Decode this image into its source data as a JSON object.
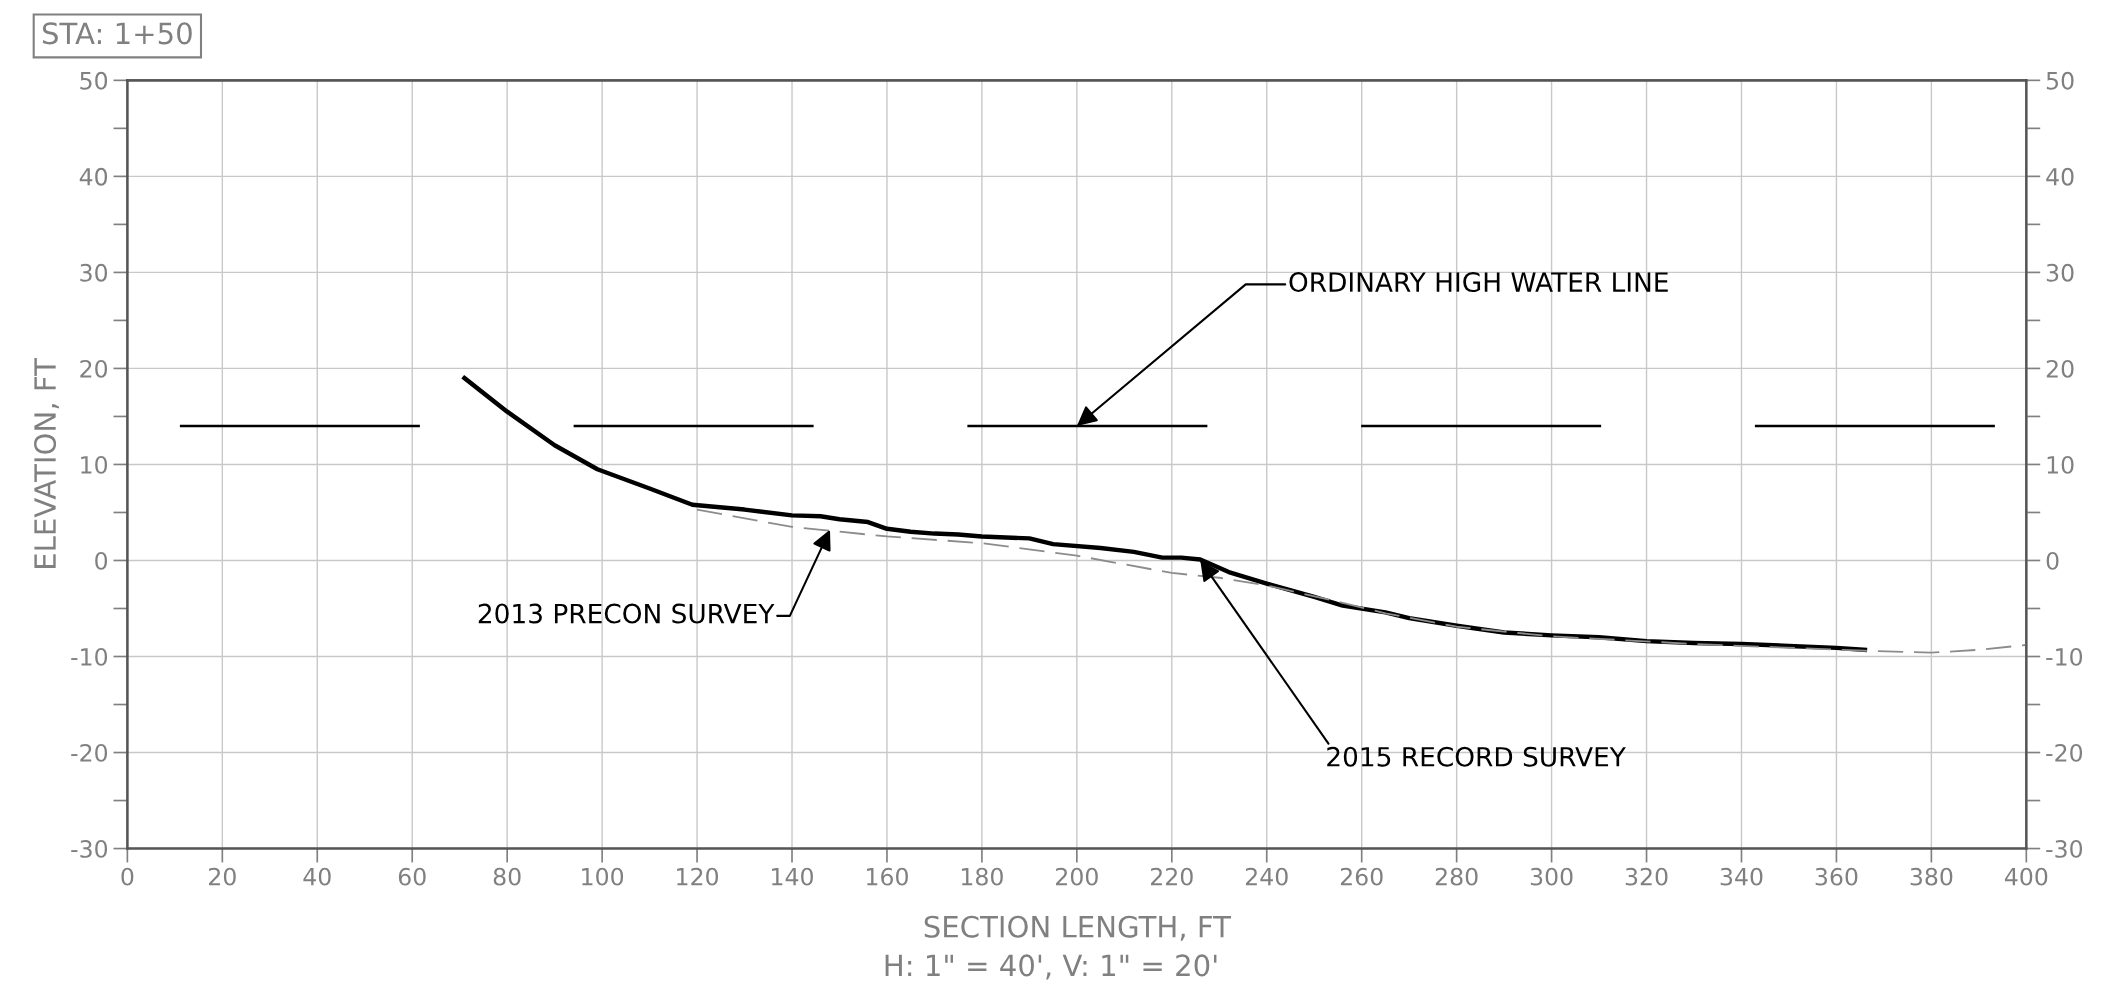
{
  "chart_data": {
    "type": "line",
    "title": "STA: 1+50",
    "xlabel": "SECTION LENGTH, FT",
    "ylabel": "ELEVATION, FT",
    "xlim": [
      0,
      400
    ],
    "xticks": [
      0,
      20,
      40,
      60,
      80,
      100,
      120,
      140,
      160,
      180,
      200,
      220,
      240,
      260,
      280,
      300,
      320,
      340,
      360,
      380,
      400
    ],
    "ylim": [
      -30,
      50
    ],
    "yticks": [
      -30,
      {
        "value": -25,
        "label": null
      },
      -20,
      {
        "value": -15,
        "label": null
      },
      -10,
      {
        "value": -5,
        "label": null
      },
      0,
      {
        "value": 5,
        "label": null
      },
      10,
      {
        "value": 15,
        "label": null
      },
      20,
      {
        "value": 25,
        "label": null
      },
      30,
      {
        "value": 35,
        "label": null
      },
      40,
      {
        "value": 45,
        "label": null
      },
      50
    ],
    "y2lim": [
      -30,
      50
    ],
    "y2ticks": [
      -30,
      {
        "value": -25,
        "label": null
      },
      -20,
      {
        "value": -15,
        "label": null
      },
      -10,
      {
        "value": -5,
        "label": null
      },
      0,
      {
        "value": 5,
        "label": null
      },
      10,
      {
        "value": 15,
        "label": null
      },
      20,
      {
        "value": 25,
        "label": null
      },
      30,
      {
        "value": 35,
        "label": null
      },
      40,
      {
        "value": 45,
        "label": null
      },
      50
    ],
    "grid": true,
    "marker": "none",
    "series": [
      {
        "color": "#000000",
        "line_style": "solid",
        "x": [
          71,
          80,
          90,
          99,
          110,
          119,
          130,
          140,
          146,
          150,
          156,
          160,
          165,
          170,
          175,
          180,
          190,
          195,
          205,
          212,
          218,
          222,
          226,
          232,
          240,
          250,
          256,
          265,
          270,
          280,
          290,
          300,
          310,
          320,
          330,
          340,
          350,
          360,
          366
        ],
        "values": [
          19,
          15.5,
          12,
          9.5,
          7.5,
          5.8,
          5.3,
          4.7,
          4.6,
          4.3,
          4,
          3.3,
          3,
          2.8,
          2.7,
          2.5,
          2.3,
          1.7,
          1.3,
          0.9,
          0.3,
          0.3,
          0.1,
          -1.2,
          -2.4,
          -3.8,
          -4.7,
          -5.4,
          -6,
          -6.8,
          -7.5,
          -7.8,
          -8,
          -8.4,
          -8.6,
          -8.7,
          -8.9,
          -9.1,
          -9.3
        ]
      },
      {
        "color": "#8c8c8c",
        "line_style": "dashed",
        "x": [
          120,
          140,
          160,
          180,
          200,
          220,
          230,
          240,
          255,
          265,
          280,
          300,
          330,
          366,
          380,
          390,
          400
        ],
        "values": [
          5.3,
          3.5,
          2.5,
          1.8,
          0.5,
          -1.3,
          -1.8,
          -2.6,
          -4.3,
          -5.5,
          -6.9,
          -7.9,
          -8.7,
          -9.4,
          -9.6,
          -9.3,
          -8.8
        ]
      }
    ],
    "ref_lines": [
      {
        "axis": "y",
        "value": 14,
        "color": "#000000",
        "line_style": "dashed"
      }
    ],
    "annotations": [
      {
        "text": "ORDINARY HIGH WATER LINE",
        "x": 200,
        "y": 14
      },
      {
        "text": "2013 PRECON SURVEY",
        "x": 148,
        "y": 3.2
      },
      {
        "text": "2015 RECORD SURVEY",
        "x": 226,
        "y": 0
      },
      "H: 1\" = 40', V: 1\" = 20'"
    ]
  }
}
